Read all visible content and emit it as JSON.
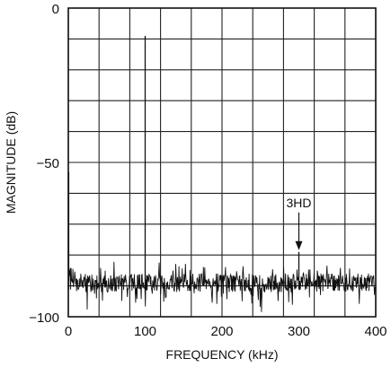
{
  "chart_data": {
    "type": "line",
    "title": "",
    "xlabel": "FREQUENCY (kHz)",
    "ylabel": "MAGNITUDE (dB)",
    "xlim": [
      0,
      400
    ],
    "ylim": [
      -100,
      0
    ],
    "grid": true,
    "x_ticks": [
      0,
      100,
      200,
      300,
      400
    ],
    "x_tick_labels": [
      "0",
      "100",
      "200",
      "300",
      "400"
    ],
    "y_ticks": [
      0,
      -50,
      -100
    ],
    "y_tick_labels": [
      "0",
      "−50",
      "−100"
    ],
    "x_grid_step": 40,
    "y_grid_step": 10,
    "noise_floor_db": -89,
    "series": [
      {
        "peaks": [
          {
            "x": 0.5,
            "y": -53
          },
          {
            "x": 100,
            "y": -9
          },
          {
            "x": 300,
            "y": -79
          }
        ]
      }
    ],
    "annotations": [
      {
        "text": "3HD",
        "x": 300,
        "y": -79
      }
    ]
  }
}
